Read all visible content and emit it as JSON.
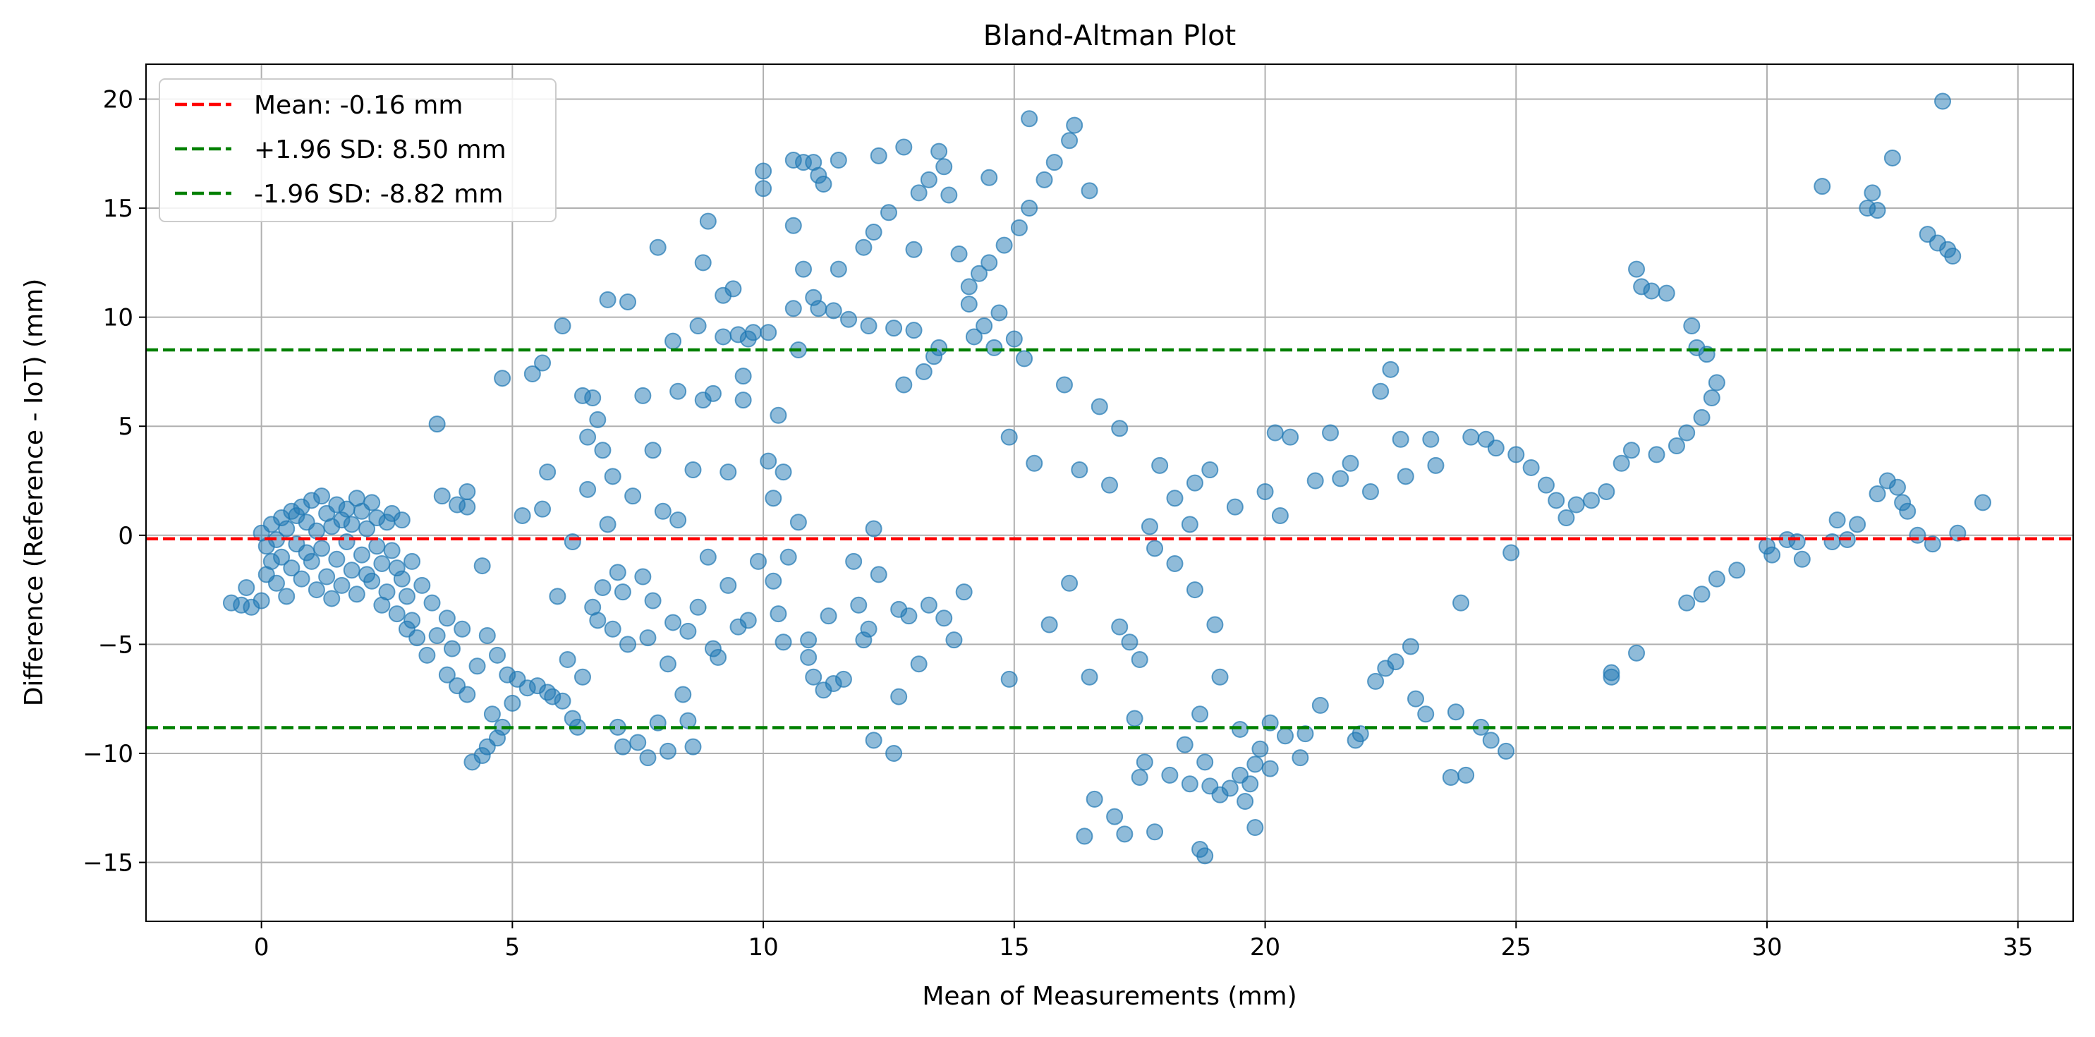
{
  "chart_data": {
    "type": "scatter",
    "title": "Bland-Altman Plot",
    "xlabel": "Mean of Measurements (mm)",
    "ylabel": "Difference (Reference - IoT) (mm)",
    "xlim": [
      -2.3,
      36.1
    ],
    "ylim": [
      -17.7,
      21.6
    ],
    "x_ticks": [
      0,
      5,
      10,
      15,
      20,
      25,
      30,
      35
    ],
    "y_ticks": [
      -15,
      -10,
      -5,
      0,
      5,
      10,
      15,
      20
    ],
    "x_tick_labels": [
      "0",
      "5",
      "10",
      "15",
      "20",
      "25",
      "30",
      "35"
    ],
    "y_tick_labels": [
      "−15",
      "−10",
      "−5",
      "0",
      "5",
      "10",
      "15",
      "20"
    ],
    "grid": true,
    "legend_position": "top-left",
    "point_color": "#1f77b4",
    "point_opacity": 0.5,
    "reference_lines": [
      {
        "label": "Mean: -0.16 mm",
        "value": -0.16,
        "color": "#ff0000",
        "style": "dashed"
      },
      {
        "label": "+1.96 SD: 8.50 mm",
        "value": 8.5,
        "color": "#008000",
        "style": "dashed"
      },
      {
        "label": "-1.96 SD: -8.82 mm",
        "value": -8.82,
        "color": "#008000",
        "style": "dashed"
      }
    ],
    "points": [
      [
        -0.6,
        -3.1
      ],
      [
        -0.4,
        -3.2
      ],
      [
        -0.3,
        -2.4
      ],
      [
        -0.2,
        -3.3
      ],
      [
        0,
        -3.0
      ],
      [
        0,
        0.1
      ],
      [
        0.1,
        -0.5
      ],
      [
        0.1,
        -1.8
      ],
      [
        0.2,
        -1.2
      ],
      [
        0.2,
        0.5
      ],
      [
        0.3,
        -2.2
      ],
      [
        0.3,
        -0.2
      ],
      [
        0.4,
        0.8
      ],
      [
        0.4,
        -1.0
      ],
      [
        0.5,
        -2.8
      ],
      [
        0.5,
        0.3
      ],
      [
        0.6,
        1.1
      ],
      [
        0.6,
        -1.5
      ],
      [
        0.7,
        -0.4
      ],
      [
        0.7,
        0.9
      ],
      [
        0.8,
        -2.0
      ],
      [
        0.8,
        1.3
      ],
      [
        0.9,
        -0.8
      ],
      [
        0.9,
        0.6
      ],
      [
        1.0,
        1.6
      ],
      [
        1.0,
        -1.2
      ],
      [
        1.1,
        -2.5
      ],
      [
        1.1,
        0.2
      ],
      [
        1.2,
        1.8
      ],
      [
        1.2,
        -0.6
      ],
      [
        1.3,
        1.0
      ],
      [
        1.3,
        -1.9
      ],
      [
        1.4,
        0.4
      ],
      [
        1.4,
        -2.9
      ],
      [
        1.5,
        1.4
      ],
      [
        1.5,
        -1.1
      ],
      [
        1.6,
        0.7
      ],
      [
        1.6,
        -2.3
      ],
      [
        1.7,
        -0.3
      ],
      [
        1.7,
        1.2
      ],
      [
        1.8,
        -1.6
      ],
      [
        1.8,
        0.5
      ],
      [
        1.9,
        1.7
      ],
      [
        1.9,
        -2.7
      ],
      [
        2.0,
        -0.9
      ],
      [
        2.0,
        1.1
      ],
      [
        2.1,
        -1.8
      ],
      [
        2.1,
        0.3
      ],
      [
        2.2,
        1.5
      ],
      [
        2.2,
        -2.1
      ],
      [
        2.3,
        -0.5
      ],
      [
        2.3,
        0.8
      ],
      [
        2.4,
        -3.2
      ],
      [
        2.4,
        -1.3
      ],
      [
        2.5,
        0.6
      ],
      [
        2.5,
        -2.6
      ],
      [
        2.6,
        -0.7
      ],
      [
        2.6,
        1.0
      ],
      [
        2.7,
        -3.6
      ],
      [
        2.7,
        -1.5
      ],
      [
        2.8,
        -2.0
      ],
      [
        2.8,
        0.7
      ],
      [
        2.9,
        -4.3
      ],
      [
        2.9,
        -2.8
      ],
      [
        3.0,
        -1.2
      ],
      [
        3.0,
        -3.9
      ],
      [
        3.1,
        -4.7
      ],
      [
        3.2,
        -2.3
      ],
      [
        3.3,
        -5.5
      ],
      [
        3.4,
        -3.1
      ],
      [
        3.5,
        5.1
      ],
      [
        3.5,
        -4.6
      ],
      [
        3.6,
        1.8
      ],
      [
        3.7,
        -6.4
      ],
      [
        3.7,
        -3.8
      ],
      [
        3.8,
        -5.2
      ],
      [
        3.9,
        1.4
      ],
      [
        3.9,
        -6.9
      ],
      [
        4.0,
        -4.3
      ],
      [
        4.1,
        2.0
      ],
      [
        4.1,
        -7.3
      ],
      [
        4.1,
        1.3
      ],
      [
        4.2,
        -10.4
      ],
      [
        4.3,
        -6.0
      ],
      [
        4.4,
        -10.1
      ],
      [
        4.4,
        -1.4
      ],
      [
        4.5,
        -9.7
      ],
      [
        4.5,
        -4.6
      ],
      [
        4.6,
        -8.2
      ],
      [
        4.7,
        -9.3
      ],
      [
        4.7,
        -5.5
      ],
      [
        4.8,
        7.2
      ],
      [
        4.8,
        -8.8
      ],
      [
        4.9,
        -6.4
      ],
      [
        5.0,
        -7.7
      ],
      [
        5.1,
        -6.6
      ],
      [
        5.2,
        0.9
      ],
      [
        5.3,
        -7.0
      ],
      [
        5.4,
        7.4
      ],
      [
        5.5,
        -6.9
      ],
      [
        5.6,
        1.2
      ],
      [
        5.6,
        7.9
      ],
      [
        5.7,
        -7.2
      ],
      [
        5.7,
        2.9
      ],
      [
        5.8,
        -7.4
      ],
      [
        5.9,
        -2.8
      ],
      [
        6.0,
        9.6
      ],
      [
        6.0,
        -7.6
      ],
      [
        6.1,
        -5.7
      ],
      [
        6.2,
        -8.4
      ],
      [
        6.2,
        -0.3
      ],
      [
        6.3,
        -8.8
      ],
      [
        6.4,
        6.4
      ],
      [
        6.4,
        -6.5
      ],
      [
        6.5,
        4.5
      ],
      [
        6.5,
        2.1
      ],
      [
        6.6,
        -3.3
      ],
      [
        6.6,
        6.3
      ],
      [
        6.7,
        5.3
      ],
      [
        6.7,
        -3.9
      ],
      [
        6.8,
        3.9
      ],
      [
        6.8,
        -2.4
      ],
      [
        6.9,
        10.8
      ],
      [
        6.9,
        0.5
      ],
      [
        7.0,
        -4.3
      ],
      [
        7.0,
        2.7
      ],
      [
        7.1,
        -1.7
      ],
      [
        7.1,
        -8.8
      ],
      [
        7.2,
        -9.7
      ],
      [
        7.2,
        -2.6
      ],
      [
        7.3,
        10.7
      ],
      [
        7.3,
        -5.0
      ],
      [
        7.4,
        1.8
      ],
      [
        7.5,
        -9.5
      ],
      [
        7.6,
        6.4
      ],
      [
        7.6,
        -1.9
      ],
      [
        7.7,
        -10.2
      ],
      [
        7.7,
        -4.7
      ],
      [
        7.8,
        3.9
      ],
      [
        7.8,
        -3.0
      ],
      [
        7.9,
        13.2
      ],
      [
        7.9,
        -8.6
      ],
      [
        8.0,
        1.1
      ],
      [
        8.1,
        -9.9
      ],
      [
        8.1,
        -5.9
      ],
      [
        8.2,
        8.9
      ],
      [
        8.2,
        -4.0
      ],
      [
        8.3,
        6.6
      ],
      [
        8.3,
        0.7
      ],
      [
        8.4,
        -7.3
      ],
      [
        8.5,
        -8.5
      ],
      [
        8.5,
        -4.4
      ],
      [
        8.6,
        -9.7
      ],
      [
        8.6,
        3.0
      ],
      [
        8.7,
        9.6
      ],
      [
        8.7,
        -3.3
      ],
      [
        8.8,
        12.5
      ],
      [
        8.8,
        6.2
      ],
      [
        8.9,
        14.4
      ],
      [
        8.9,
        -1.0
      ],
      [
        9.0,
        6.5
      ],
      [
        9.0,
        -5.2
      ],
      [
        9.1,
        -5.6
      ],
      [
        9.2,
        9.1
      ],
      [
        9.2,
        11.0
      ],
      [
        9.3,
        2.9
      ],
      [
        9.3,
        -2.3
      ],
      [
        9.4,
        11.3
      ],
      [
        9.5,
        9.2
      ],
      [
        9.5,
        -4.2
      ],
      [
        9.6,
        7.3
      ],
      [
        9.6,
        6.2
      ],
      [
        9.7,
        9.0
      ],
      [
        9.7,
        -3.9
      ],
      [
        9.8,
        9.3
      ],
      [
        9.9,
        -1.2
      ],
      [
        10.0,
        16.7
      ],
      [
        10.0,
        15.9
      ],
      [
        10.1,
        9.3
      ],
      [
        10.1,
        3.4
      ],
      [
        10.2,
        1.7
      ],
      [
        10.2,
        -2.1
      ],
      [
        10.3,
        5.5
      ],
      [
        10.3,
        -3.6
      ],
      [
        10.4,
        2.9
      ],
      [
        10.4,
        -4.9
      ],
      [
        10.5,
        -1.0
      ],
      [
        10.6,
        17.2
      ],
      [
        10.6,
        14.2
      ],
      [
        10.6,
        10.4
      ],
      [
        10.7,
        8.5
      ],
      [
        10.7,
        0.6
      ],
      [
        10.8,
        17.1
      ],
      [
        10.8,
        12.2
      ],
      [
        10.9,
        -4.8
      ],
      [
        10.9,
        -5.6
      ],
      [
        11.0,
        17.1
      ],
      [
        11.0,
        10.9
      ],
      [
        11.0,
        -6.5
      ],
      [
        11.1,
        16.5
      ],
      [
        11.1,
        10.4
      ],
      [
        11.2,
        -7.1
      ],
      [
        11.2,
        16.1
      ],
      [
        11.3,
        -3.7
      ],
      [
        11.4,
        10.3
      ],
      [
        11.4,
        -6.8
      ],
      [
        11.5,
        12.2
      ],
      [
        11.5,
        17.2
      ],
      [
        11.6,
        -6.6
      ],
      [
        11.7,
        9.9
      ],
      [
        11.8,
        -1.2
      ],
      [
        11.9,
        -3.2
      ],
      [
        12.0,
        13.2
      ],
      [
        12.0,
        -4.8
      ],
      [
        12.1,
        9.6
      ],
      [
        12.1,
        -4.3
      ],
      [
        12.2,
        13.9
      ],
      [
        12.2,
        0.3
      ],
      [
        12.2,
        -9.4
      ],
      [
        12.3,
        17.4
      ],
      [
        12.3,
        -1.8
      ],
      [
        12.5,
        14.8
      ],
      [
        12.6,
        9.5
      ],
      [
        12.6,
        -10.0
      ],
      [
        12.7,
        -7.4
      ],
      [
        12.7,
        -3.4
      ],
      [
        12.8,
        17.8
      ],
      [
        12.8,
        6.9
      ],
      [
        12.9,
        -3.7
      ],
      [
        13.0,
        13.1
      ],
      [
        13.0,
        9.4
      ],
      [
        13.1,
        15.7
      ],
      [
        13.1,
        -5.9
      ],
      [
        13.2,
        7.5
      ],
      [
        13.3,
        16.3
      ],
      [
        13.3,
        -3.2
      ],
      [
        13.4,
        8.2
      ],
      [
        13.5,
        17.6
      ],
      [
        13.5,
        8.6
      ],
      [
        13.6,
        16.9
      ],
      [
        13.6,
        -3.8
      ],
      [
        13.7,
        15.6
      ],
      [
        13.8,
        -4.8
      ],
      [
        13.9,
        12.9
      ],
      [
        14.0,
        -2.6
      ],
      [
        14.1,
        11.4
      ],
      [
        14.1,
        10.6
      ],
      [
        14.2,
        9.1
      ],
      [
        14.3,
        12.0
      ],
      [
        14.4,
        9.6
      ],
      [
        14.5,
        16.4
      ],
      [
        14.5,
        12.5
      ],
      [
        14.6,
        8.6
      ],
      [
        14.7,
        10.2
      ],
      [
        14.8,
        13.3
      ],
      [
        14.9,
        -6.6
      ],
      [
        14.9,
        4.5
      ],
      [
        15.0,
        9.0
      ],
      [
        15.1,
        14.1
      ],
      [
        15.2,
        8.1
      ],
      [
        15.3,
        19.1
      ],
      [
        15.3,
        15.0
      ],
      [
        15.4,
        3.3
      ],
      [
        15.6,
        16.3
      ],
      [
        15.7,
        -4.1
      ],
      [
        15.8,
        17.1
      ],
      [
        16.0,
        6.9
      ],
      [
        16.1,
        18.1
      ],
      [
        16.1,
        -2.2
      ],
      [
        16.2,
        18.8
      ],
      [
        16.3,
        3.0
      ],
      [
        16.4,
        -13.8
      ],
      [
        16.5,
        15.8
      ],
      [
        16.5,
        -6.5
      ],
      [
        16.6,
        -12.1
      ],
      [
        16.7,
        5.9
      ],
      [
        16.9,
        2.3
      ],
      [
        17.0,
        -12.9
      ],
      [
        17.1,
        -4.2
      ],
      [
        17.1,
        4.9
      ],
      [
        17.2,
        -13.7
      ],
      [
        17.3,
        -4.9
      ],
      [
        17.4,
        -8.4
      ],
      [
        17.5,
        -11.1
      ],
      [
        17.5,
        -5.7
      ],
      [
        17.6,
        -10.4
      ],
      [
        17.7,
        0.4
      ],
      [
        17.8,
        -13.6
      ],
      [
        17.8,
        -0.6
      ],
      [
        17.9,
        3.2
      ],
      [
        18.1,
        -11.0
      ],
      [
        18.2,
        1.7
      ],
      [
        18.2,
        -1.3
      ],
      [
        18.4,
        -9.6
      ],
      [
        18.5,
        -11.4
      ],
      [
        18.5,
        0.5
      ],
      [
        18.6,
        2.4
      ],
      [
        18.6,
        -2.5
      ],
      [
        18.7,
        -14.4
      ],
      [
        18.7,
        -8.2
      ],
      [
        18.8,
        -10.4
      ],
      [
        18.8,
        -14.7
      ],
      [
        18.9,
        -11.5
      ],
      [
        18.9,
        3.0
      ],
      [
        19.0,
        -4.1
      ],
      [
        19.1,
        -6.5
      ],
      [
        19.1,
        -11.9
      ],
      [
        19.3,
        -11.6
      ],
      [
        19.4,
        1.3
      ],
      [
        19.5,
        -8.9
      ],
      [
        19.5,
        -11.0
      ],
      [
        19.6,
        -12.2
      ],
      [
        19.7,
        -11.4
      ],
      [
        19.8,
        -10.5
      ],
      [
        19.8,
        -13.4
      ],
      [
        19.9,
        -9.8
      ],
      [
        20.0,
        2.0
      ],
      [
        20.1,
        -10.7
      ],
      [
        20.1,
        -8.6
      ],
      [
        20.2,
        4.7
      ],
      [
        20.3,
        0.9
      ],
      [
        20.4,
        -9.2
      ],
      [
        20.5,
        4.5
      ],
      [
        20.7,
        -10.2
      ],
      [
        20.8,
        -9.1
      ],
      [
        21.0,
        2.5
      ],
      [
        21.1,
        -7.8
      ],
      [
        21.3,
        4.7
      ],
      [
        21.5,
        2.6
      ],
      [
        21.7,
        3.3
      ],
      [
        21.8,
        -9.4
      ],
      [
        21.9,
        -9.1
      ],
      [
        22.1,
        2.0
      ],
      [
        22.2,
        -6.7
      ],
      [
        22.3,
        6.6
      ],
      [
        22.4,
        -6.1
      ],
      [
        22.5,
        7.6
      ],
      [
        22.6,
        -5.8
      ],
      [
        22.7,
        4.4
      ],
      [
        22.8,
        2.7
      ],
      [
        22.9,
        -5.1
      ],
      [
        23.0,
        -7.5
      ],
      [
        23.2,
        -8.2
      ],
      [
        23.3,
        4.4
      ],
      [
        23.4,
        3.2
      ],
      [
        23.7,
        -11.1
      ],
      [
        23.8,
        -8.1
      ],
      [
        23.9,
        -3.1
      ],
      [
        24.0,
        -11.0
      ],
      [
        24.1,
        4.5
      ],
      [
        24.3,
        -8.8
      ],
      [
        24.4,
        4.4
      ],
      [
        24.5,
        -9.4
      ],
      [
        24.6,
        4.0
      ],
      [
        24.8,
        -9.9
      ],
      [
        24.9,
        -0.8
      ],
      [
        25.0,
        3.7
      ],
      [
        25.3,
        3.1
      ],
      [
        25.6,
        2.3
      ],
      [
        25.8,
        1.6
      ],
      [
        26.0,
        0.8
      ],
      [
        26.2,
        1.4
      ],
      [
        26.5,
        1.6
      ],
      [
        26.8,
        2.0
      ],
      [
        26.9,
        -6.3
      ],
      [
        26.9,
        -6.5
      ],
      [
        27.1,
        3.3
      ],
      [
        27.3,
        3.9
      ],
      [
        27.4,
        -5.4
      ],
      [
        27.4,
        12.2
      ],
      [
        27.5,
        11.4
      ],
      [
        27.7,
        11.2
      ],
      [
        27.8,
        3.7
      ],
      [
        28.0,
        11.1
      ],
      [
        28.2,
        4.1
      ],
      [
        28.4,
        4.7
      ],
      [
        28.4,
        -3.1
      ],
      [
        28.5,
        9.6
      ],
      [
        28.6,
        8.6
      ],
      [
        28.7,
        5.4
      ],
      [
        28.7,
        -2.7
      ],
      [
        28.8,
        8.3
      ],
      [
        28.9,
        6.3
      ],
      [
        29.0,
        7.0
      ],
      [
        29.0,
        -2.0
      ],
      [
        29.4,
        -1.6
      ],
      [
        30.0,
        -0.5
      ],
      [
        30.1,
        -0.9
      ],
      [
        30.4,
        -0.2
      ],
      [
        30.6,
        -0.3
      ],
      [
        30.7,
        -1.1
      ],
      [
        31.1,
        16.0
      ],
      [
        31.3,
        -0.3
      ],
      [
        31.4,
        0.7
      ],
      [
        31.6,
        -0.2
      ],
      [
        31.8,
        0.5
      ],
      [
        32.0,
        15.0
      ],
      [
        32.1,
        15.7
      ],
      [
        32.2,
        14.9
      ],
      [
        32.2,
        1.9
      ],
      [
        32.4,
        2.5
      ],
      [
        32.5,
        17.3
      ],
      [
        32.6,
        2.2
      ],
      [
        32.7,
        1.5
      ],
      [
        32.8,
        1.1
      ],
      [
        33.0,
        0.0
      ],
      [
        33.2,
        13.8
      ],
      [
        33.3,
        -0.4
      ],
      [
        33.4,
        13.4
      ],
      [
        33.5,
        19.9
      ],
      [
        33.6,
        13.1
      ],
      [
        33.7,
        12.8
      ],
      [
        33.8,
        0.1
      ],
      [
        34.3,
        1.5
      ]
    ]
  }
}
